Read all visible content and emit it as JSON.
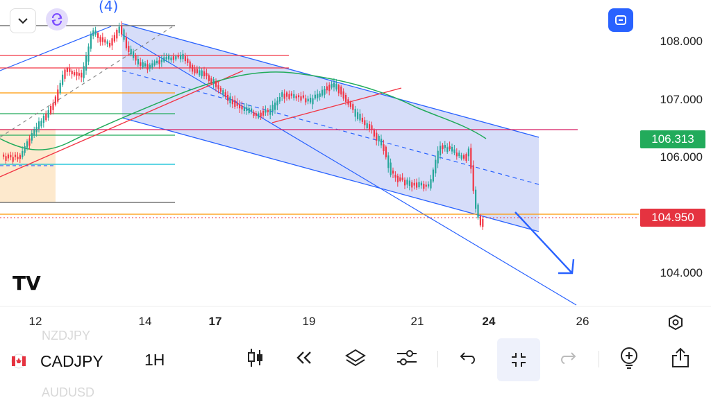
{
  "header": {
    "wave_label": "(4)",
    "collapse_icon": "chevron-down-icon",
    "sync_icon": "sync-icon",
    "fullscreen_icon": "fullscreen-icon"
  },
  "price_axis": {
    "labels": [
      "108.000",
      "107.000",
      "106.000",
      "104.000"
    ],
    "ma_price": "106.313",
    "last_price": "104.950"
  },
  "time_axis": {
    "labels": [
      "12",
      "14",
      "17",
      "19",
      "21",
      "24",
      "26"
    ],
    "bold_labels": [
      "17",
      "24"
    ]
  },
  "colors": {
    "bull": "#26a69a",
    "bear": "#f23645",
    "channel_fill": "#c5cff7",
    "channel_line": "#2962ff",
    "ma_tag": "#22ab5b",
    "price_tag": "#e53340",
    "accent": "#2962ff"
  },
  "bottombar": {
    "symbol": "CADJPY",
    "interval": "1H",
    "ghost_above": "NZDJPY",
    "ghost_below": "AUDUSD",
    "icons": [
      "candles-icon",
      "replay-icon",
      "layers-icon",
      "settings-sliders-icon",
      "undo-icon",
      "exit-fullscreen-icon",
      "redo-icon",
      "alert-add-icon",
      "share-icon"
    ]
  },
  "chart_data": {
    "type": "candlestick",
    "symbol": "CADJPY",
    "interval": "1H",
    "y_ticks": [
      104.0,
      106.0,
      107.0,
      108.0
    ],
    "x_ticks": [
      "12",
      "14",
      "17",
      "19",
      "21",
      "24",
      "26"
    ],
    "ma_value": 106.313,
    "last_value": 104.95,
    "annotations": [
      "(4)"
    ]
  }
}
